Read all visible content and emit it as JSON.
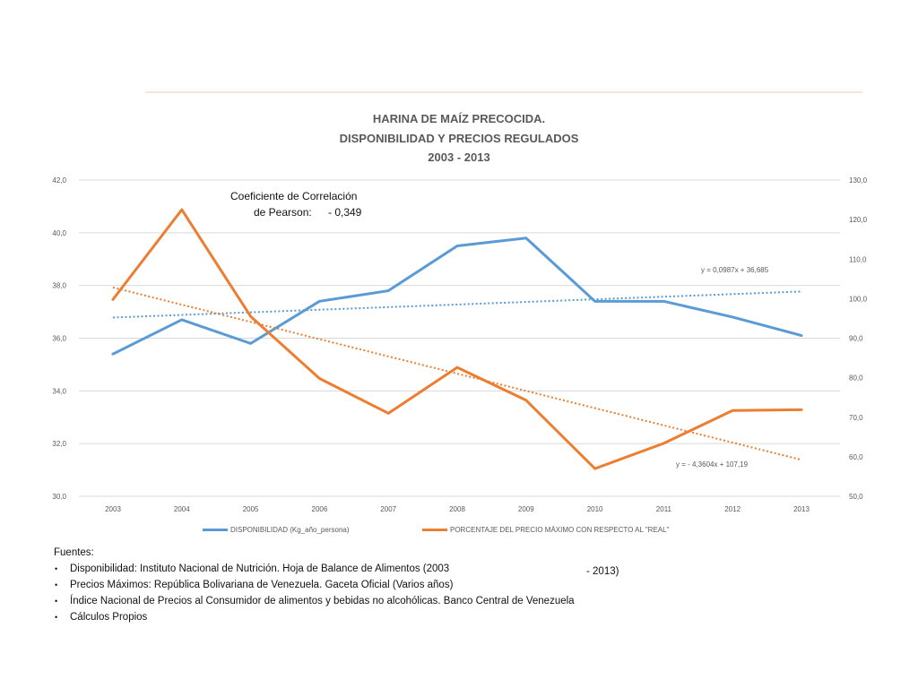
{
  "chart_data": {
    "type": "line",
    "title_lines": [
      "HARINA DE MAÍZ PRECOCIDA.",
      "DISPONIBILIDAD Y PRECIOS REGULADOS",
      "2003   - 2013"
    ],
    "categories": [
      "2003",
      "2004",
      "2005",
      "2006",
      "2007",
      "2008",
      "2009",
      "2010",
      "2011",
      "2012",
      "2013"
    ],
    "y_left": {
      "ticks": [
        "30,0",
        "32,0",
        "34,0",
        "36,0",
        "38,0",
        "40,0",
        "42,0"
      ],
      "range": [
        30,
        42
      ]
    },
    "y_right": {
      "ticks": [
        "50,0",
        "60,0",
        "70,0",
        "80,0",
        "90,0",
        "100,0",
        "110,0",
        "120,0",
        "130,0"
      ],
      "range": [
        50,
        130
      ]
    },
    "grid": true,
    "series": [
      {
        "name": "DISPONIBILIDAD (Kg_año_persona)",
        "axis": "left",
        "color": "#5b9bd5",
        "values": [
          35.4,
          36.7,
          35.8,
          37.4,
          37.8,
          39.5,
          39.8,
          37.4,
          37.4,
          36.8,
          36.1
        ],
        "trendline": {
          "label": "y = 0,0987x + 36,685",
          "slope": 0.0987,
          "intercept": 36.685
        }
      },
      {
        "name": "PORCENTAJE DEL PRECIO MÁXIMO CON RESPECTO AL \"REAL\"",
        "axis": "right",
        "color": "#ed7d31",
        "values": [
          99.8,
          122.5,
          95.5,
          79.8,
          71.0,
          82.6,
          74.3,
          57.0,
          63.4,
          71.7,
          71.9
        ],
        "trendline": {
          "label": "y =  - 4,3604x + 107,19",
          "slope": -4.3604,
          "intercept": 107.19
        }
      }
    ],
    "annotation": {
      "line1": "Coeficiente de Correlación",
      "line2_label": "de Pearson:",
      "line2_value": "- 0,349"
    },
    "legend_placement": "bottom"
  },
  "sources": {
    "heading": "Fuentes:",
    "items": [
      "Disponibilidad: Instituto Nacional de Nutrición. Hoja de Balance de Alimentos (2003",
      "Precios Máximos: República Bolivariana de Venezuela. Gaceta Oficial (Varios años)",
      "Índice Nacional de Precios al Consumidor de alimentos y bebidas no alcohólicas. Banco Central de Venezuela",
      "Cálculos Propios"
    ],
    "item1_end": "-  2013)"
  }
}
